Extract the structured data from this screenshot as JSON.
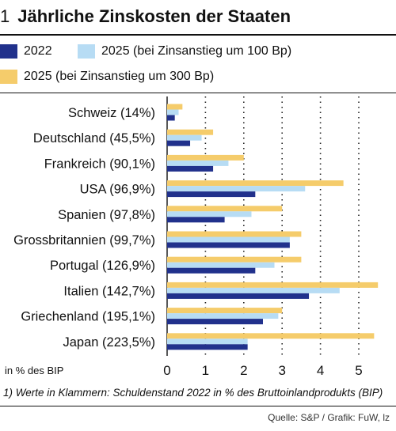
{
  "header": {
    "number": "1",
    "title": "Jährliche Zinskosten der Staaten"
  },
  "colors": {
    "s2022": "#21318c",
    "s2025_100": "#b7dcf4",
    "s2025_300": "#f5cc6b"
  },
  "chart_data": {
    "type": "bar",
    "orientation": "horizontal",
    "categories": [
      "Schweiz (14%)",
      "Deutschland (45,5%)",
      "Frankreich (90,1%)",
      "USA (96,9%)",
      "Spanien (97,8%)",
      "Grossbritannien (99,7%)",
      "Portugal (126,9%)",
      "Italien (142,7%)",
      "Griechenland (195,1%)",
      "Japan (223,5%)"
    ],
    "series": [
      {
        "name": "2025 (bei Zinsanstieg um 300 Bp)",
        "values": [
          0.4,
          1.2,
          2.0,
          4.6,
          3.0,
          3.5,
          3.5,
          5.5,
          3.0,
          5.4
        ]
      },
      {
        "name": "2025 (bei Zinsanstieg um 100 Bp)",
        "values": [
          0.3,
          0.9,
          1.6,
          3.6,
          2.2,
          3.2,
          2.8,
          4.5,
          2.9,
          2.1
        ]
      },
      {
        "name": "2022",
        "values": [
          0.2,
          0.6,
          1.2,
          2.3,
          1.5,
          3.2,
          2.3,
          3.7,
          2.5,
          2.1
        ]
      }
    ],
    "xlim": [
      0,
      5.5
    ],
    "xticks": [
      "0",
      "1",
      "2",
      "3",
      "4",
      "5"
    ],
    "xlabel": "in % des BIP",
    "grid": "dotted vertical"
  },
  "legend": {
    "item_2022": "2022",
    "item_2025_100": "2025 (bei Zinsanstieg um 100 Bp)",
    "item_2025_300": "2025 (bei Zinsanstieg um 300 Bp)"
  },
  "footnote": "1) Werte in Klammern: Schuldenstand 2022 in % des Bruttoinlandprodukts (BIP)",
  "source": "Quelle: S&P / Grafik: FuW, lz"
}
